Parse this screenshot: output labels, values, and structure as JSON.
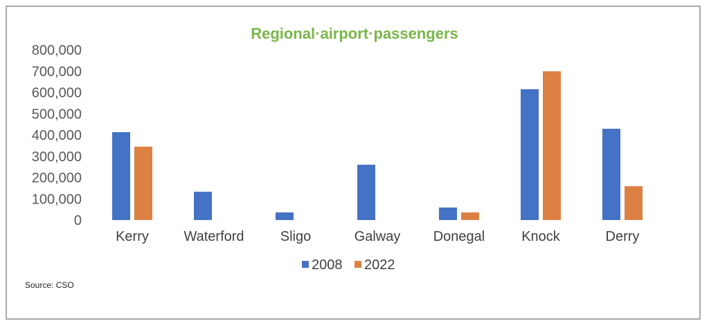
{
  "chart_data": {
    "type": "bar",
    "title": "Regional·airport·passengers",
    "xlabel": "",
    "ylabel": "",
    "ylim": [
      0,
      800000
    ],
    "yticks": [
      "0",
      "100,000",
      "200,000",
      "300,000",
      "400,000",
      "500,000",
      "600,000",
      "700,000",
      "800,000"
    ],
    "grid": false,
    "legend_position": "bottom",
    "categories": [
      "Kerry",
      "Waterford",
      "Sligo",
      "Galway",
      "Donegal",
      "Knock",
      "Derry"
    ],
    "series": [
      {
        "name": "2008",
        "color": "#4472c4",
        "values": [
          413000,
          133000,
          36000,
          260000,
          59000,
          615000,
          429000
        ]
      },
      {
        "name": "2022",
        "color": "#dd8044",
        "values": [
          345000,
          0,
          0,
          0,
          36000,
          699000,
          159000
        ]
      }
    ],
    "source": "Source: CSO"
  }
}
